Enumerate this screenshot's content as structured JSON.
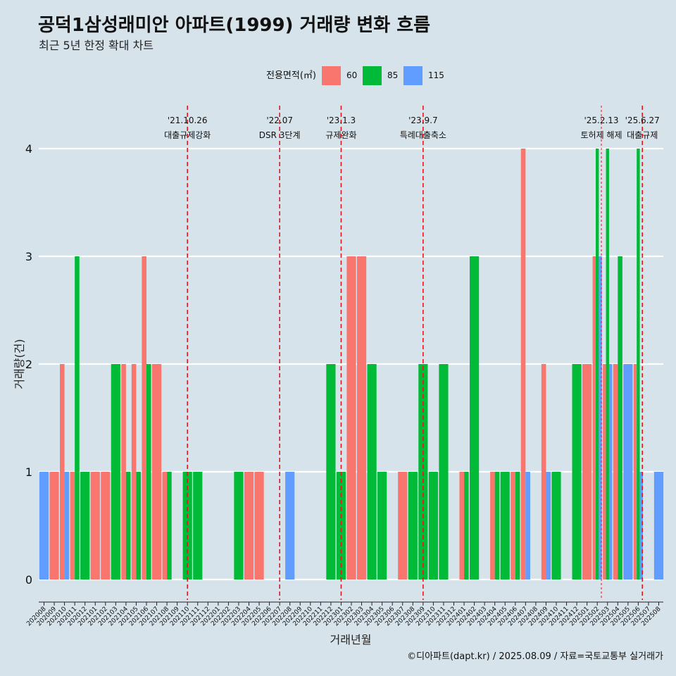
{
  "chart_data": {
    "type": "bar",
    "title": "공덕1삼성래미안 아파트(1999) 거래량 변화 흐름",
    "subtitle": "최근 5년 한정 확대 차트",
    "xlabel": "거래년월",
    "ylabel": "거래량(건)",
    "ylim": [
      0,
      4
    ],
    "yticks": [
      "0",
      "1",
      "2",
      "3",
      "4"
    ],
    "legend": {
      "title": "전용면적(㎡)",
      "placement": "top"
    },
    "colors": {
      "60": "#f8766d",
      "85": "#00ba38",
      "115": "#619cff",
      "event_line": "#e8141c",
      "background": "#d6e3ea"
    },
    "categories": [
      "202008",
      "202009",
      "202010",
      "202011",
      "202012",
      "202101",
      "202102",
      "202103",
      "202104",
      "202105",
      "202106",
      "202107",
      "202108",
      "202109",
      "202110",
      "202111",
      "202112",
      "202201",
      "202202",
      "202203",
      "202204",
      "202205",
      "202206",
      "202207",
      "202208",
      "202209",
      "202210",
      "202211",
      "202212",
      "202301",
      "202302",
      "202303",
      "202304",
      "202305",
      "202306",
      "202307",
      "202308",
      "202309",
      "202310",
      "202311",
      "202312",
      "202401",
      "202402",
      "202403",
      "202404",
      "202405",
      "202406",
      "202407",
      "202408",
      "202409",
      "202410",
      "202411",
      "202412",
      "202501",
      "202502",
      "202503",
      "202504",
      "202505",
      "202506",
      "202507",
      "202508"
    ],
    "series": [
      {
        "name": "60",
        "values": [
          0,
          1,
          2,
          1,
          0,
          1,
          1,
          0,
          2,
          2,
          3,
          2,
          1,
          0,
          0,
          0,
          0,
          0,
          0,
          0,
          1,
          1,
          0,
          0,
          0,
          0,
          0,
          0,
          0,
          0,
          3,
          3,
          0,
          0,
          0,
          1,
          0,
          0,
          0,
          0,
          0,
          1,
          0,
          0,
          1,
          0,
          1,
          4,
          0,
          2,
          0,
          0,
          0,
          2,
          3,
          2,
          2,
          0,
          2,
          0,
          0
        ]
      },
      {
        "name": "85",
        "values": [
          0,
          0,
          0,
          3,
          1,
          0,
          0,
          2,
          1,
          1,
          2,
          0,
          1,
          0,
          1,
          1,
          0,
          0,
          0,
          1,
          0,
          0,
          0,
          0,
          0,
          0,
          0,
          0,
          2,
          1,
          0,
          0,
          2,
          1,
          0,
          0,
          1,
          2,
          1,
          2,
          0,
          1,
          3,
          0,
          1,
          1,
          1,
          0,
          0,
          0,
          1,
          0,
          2,
          0,
          4,
          4,
          3,
          0,
          4,
          0,
          0
        ]
      },
      {
        "name": "115",
        "values": [
          1,
          0,
          1,
          0,
          0,
          0,
          0,
          0,
          0,
          0,
          0,
          0,
          0,
          0,
          0,
          0,
          0,
          0,
          0,
          0,
          0,
          0,
          0,
          0,
          1,
          0,
          0,
          0,
          0,
          0,
          0,
          0,
          0,
          0,
          0,
          0,
          0,
          0,
          0,
          0,
          0,
          0,
          0,
          0,
          0,
          0,
          0,
          1,
          0,
          1,
          0,
          0,
          0,
          0,
          3,
          2,
          0,
          2,
          1,
          0,
          1
        ]
      }
    ],
    "annotations": [
      {
        "x": 14,
        "date": "'21.10.26",
        "label": "대출규제강화",
        "style": "dashed"
      },
      {
        "x": 23,
        "date": "'22.07",
        "label": "DSR 3단계",
        "style": "dashed"
      },
      {
        "x": 29,
        "date": "'23.1.3",
        "label": "규제완화",
        "style": "dashed"
      },
      {
        "x": 37,
        "date": "'23.9.7",
        "label": "특례대출축소",
        "style": "dashed"
      },
      {
        "x": 54.4,
        "date": "'25.2.13",
        "label": "토허제 해제",
        "style": "thin"
      },
      {
        "x": 58.4,
        "date": "'25.6.27",
        "label": "대출규제",
        "style": "dashed"
      }
    ]
  },
  "caption": "©디아파트(dapt.kr) / 2025.08.09 / 자료=국토교통부 실거래가"
}
